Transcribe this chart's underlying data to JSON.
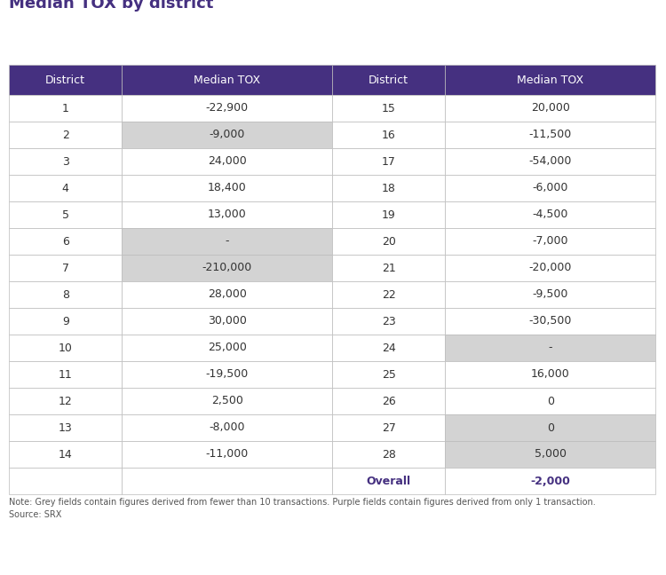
{
  "title": "Median TOX by district",
  "header_bg": "#453080",
  "header_text_color": "#ffffff",
  "border_color": "#bbbbbb",
  "grey_color": "#d3d3d3",
  "white_color": "#ffffff",
  "left_data": [
    [
      "1",
      "-22,900",
      "white"
    ],
    [
      "2",
      "-9,000",
      "grey"
    ],
    [
      "3",
      "24,000",
      "white"
    ],
    [
      "4",
      "18,400",
      "white"
    ],
    [
      "5",
      "13,000",
      "white"
    ],
    [
      "6",
      "-",
      "grey"
    ],
    [
      "7",
      "-210,000",
      "grey"
    ],
    [
      "8",
      "28,000",
      "white"
    ],
    [
      "9",
      "30,000",
      "white"
    ],
    [
      "10",
      "25,000",
      "white"
    ],
    [
      "11",
      "-19,500",
      "white"
    ],
    [
      "12",
      "2,500",
      "white"
    ],
    [
      "13",
      "-8,000",
      "white"
    ],
    [
      "14",
      "-11,000",
      "white"
    ]
  ],
  "right_data": [
    [
      "15",
      "20,000",
      "white"
    ],
    [
      "16",
      "-11,500",
      "white"
    ],
    [
      "17",
      "-54,000",
      "white"
    ],
    [
      "18",
      "-6,000",
      "white"
    ],
    [
      "19",
      "-4,500",
      "white"
    ],
    [
      "20",
      "-7,000",
      "white"
    ],
    [
      "21",
      "-20,000",
      "white"
    ],
    [
      "22",
      "-9,500",
      "white"
    ],
    [
      "23",
      "-30,500",
      "white"
    ],
    [
      "24",
      "-",
      "grey"
    ],
    [
      "25",
      "16,000",
      "white"
    ],
    [
      "26",
      "0",
      "white"
    ],
    [
      "27",
      "0",
      "grey"
    ],
    [
      "28",
      "5,000",
      "grey"
    ]
  ],
  "overall_district": "Overall",
  "overall_value": "-2,000",
  "note": "Note: Grey fields contain figures derived from fewer than 10 transactions. Purple fields contain figures derived from only 1 transaction.",
  "source": "Source: SRX",
  "col_headers": [
    "District",
    "Median TOX",
    "District",
    "Median TOX"
  ],
  "title_color": "#453080",
  "overall_district_color": "#453080",
  "overall_value_color": "#453080"
}
